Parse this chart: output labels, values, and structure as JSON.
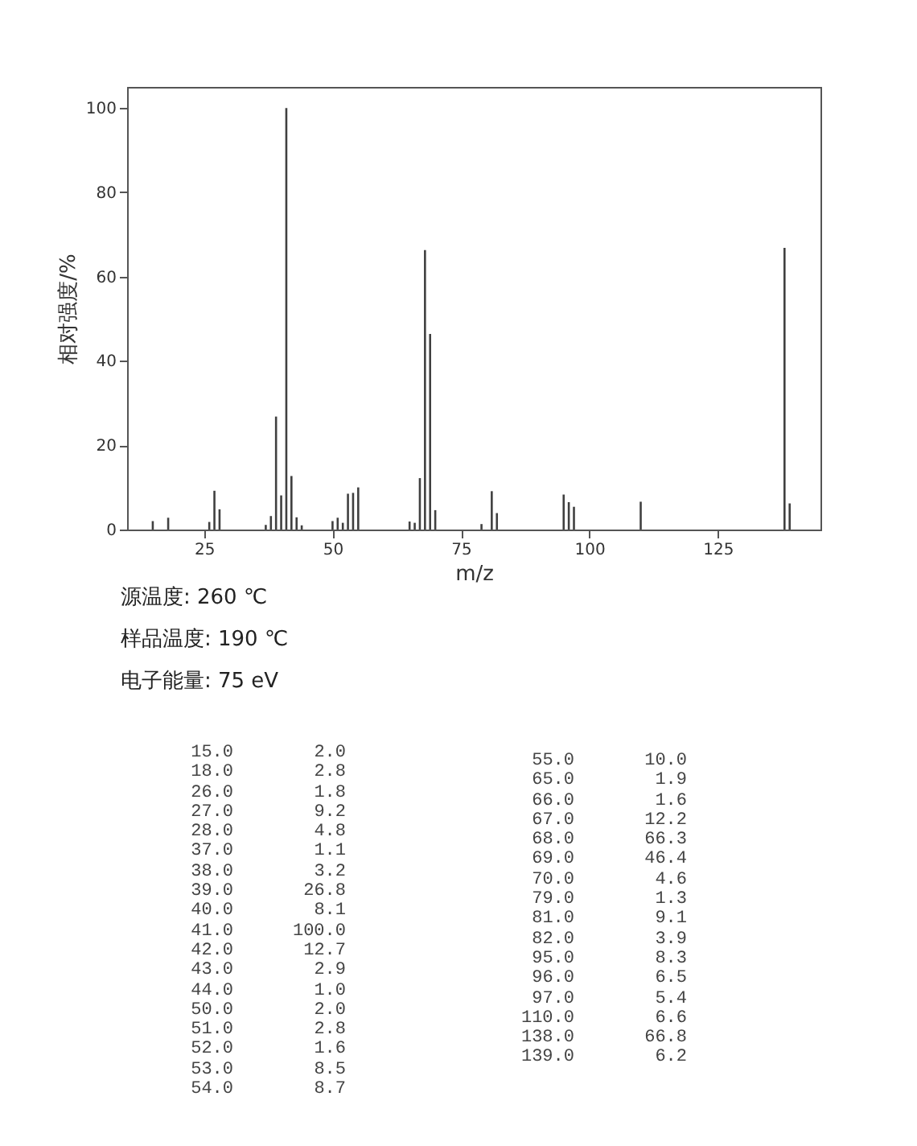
{
  "chart_data": {
    "type": "bar",
    "xlabel": "m/z",
    "ylabel": "相对强度/%",
    "x": [
      15,
      18,
      26,
      27,
      28,
      37,
      38,
      39,
      40,
      41,
      42,
      43,
      44,
      50,
      51,
      52,
      53,
      54,
      55,
      65,
      66,
      67,
      68,
      69,
      70,
      79,
      81,
      82,
      95,
      96,
      97,
      110,
      138,
      139
    ],
    "values": [
      2.0,
      2.8,
      1.8,
      9.2,
      4.8,
      1.1,
      3.2,
      26.8,
      8.1,
      100.0,
      12.7,
      2.9,
      1.0,
      2.0,
      2.8,
      1.6,
      8.5,
      8.7,
      10.0,
      1.9,
      1.6,
      12.2,
      66.3,
      46.4,
      4.6,
      1.3,
      9.1,
      3.9,
      8.3,
      6.5,
      5.4,
      6.6,
      66.8,
      6.2
    ],
    "color": "#404040",
    "xlim": [
      10,
      145
    ],
    "ylim": [
      0,
      105
    ],
    "xticks": [
      25,
      50,
      75,
      100,
      125
    ],
    "yticks": [
      0,
      20,
      40,
      60,
      80,
      100
    ],
    "grid": false,
    "annotations": [
      "源温度: 260 ℃",
      "样品温度: 190 ℃",
      "电子能量: 75 eV",
      "15.0",
      "2.0",
      "18.0",
      "2.8",
      "26.0",
      "1.8",
      "27.0",
      "9.2",
      "28.0",
      "4.8",
      "37.0",
      "1.1",
      "38.0",
      "3.2",
      "39.0",
      "26.8",
      "40.0",
      "8.1",
      "41.0",
      "100.0",
      "42.0",
      "12.7",
      "43.0",
      "2.9",
      "44.0",
      "1.0",
      "50.0",
      "2.0",
      "51.0",
      "2.8",
      "52.0",
      "1.6",
      "53.0",
      "8.5",
      "54.0",
      "8.7",
      "55.0",
      "10.0",
      "65.0",
      "1.9",
      "66.0",
      "1.6",
      "67.0",
      "12.2",
      "68.0",
      "66.3",
      "69.0",
      "46.4",
      "70.0",
      "4.6",
      "79.0",
      "1.3",
      "81.0",
      "9.1",
      "82.0",
      "3.9",
      "95.0",
      "8.3",
      "96.0",
      "6.5",
      "97.0",
      "5.4",
      "110.0",
      "6.6",
      "138.0",
      "66.8",
      "139.0",
      "6.2"
    ]
  }
}
